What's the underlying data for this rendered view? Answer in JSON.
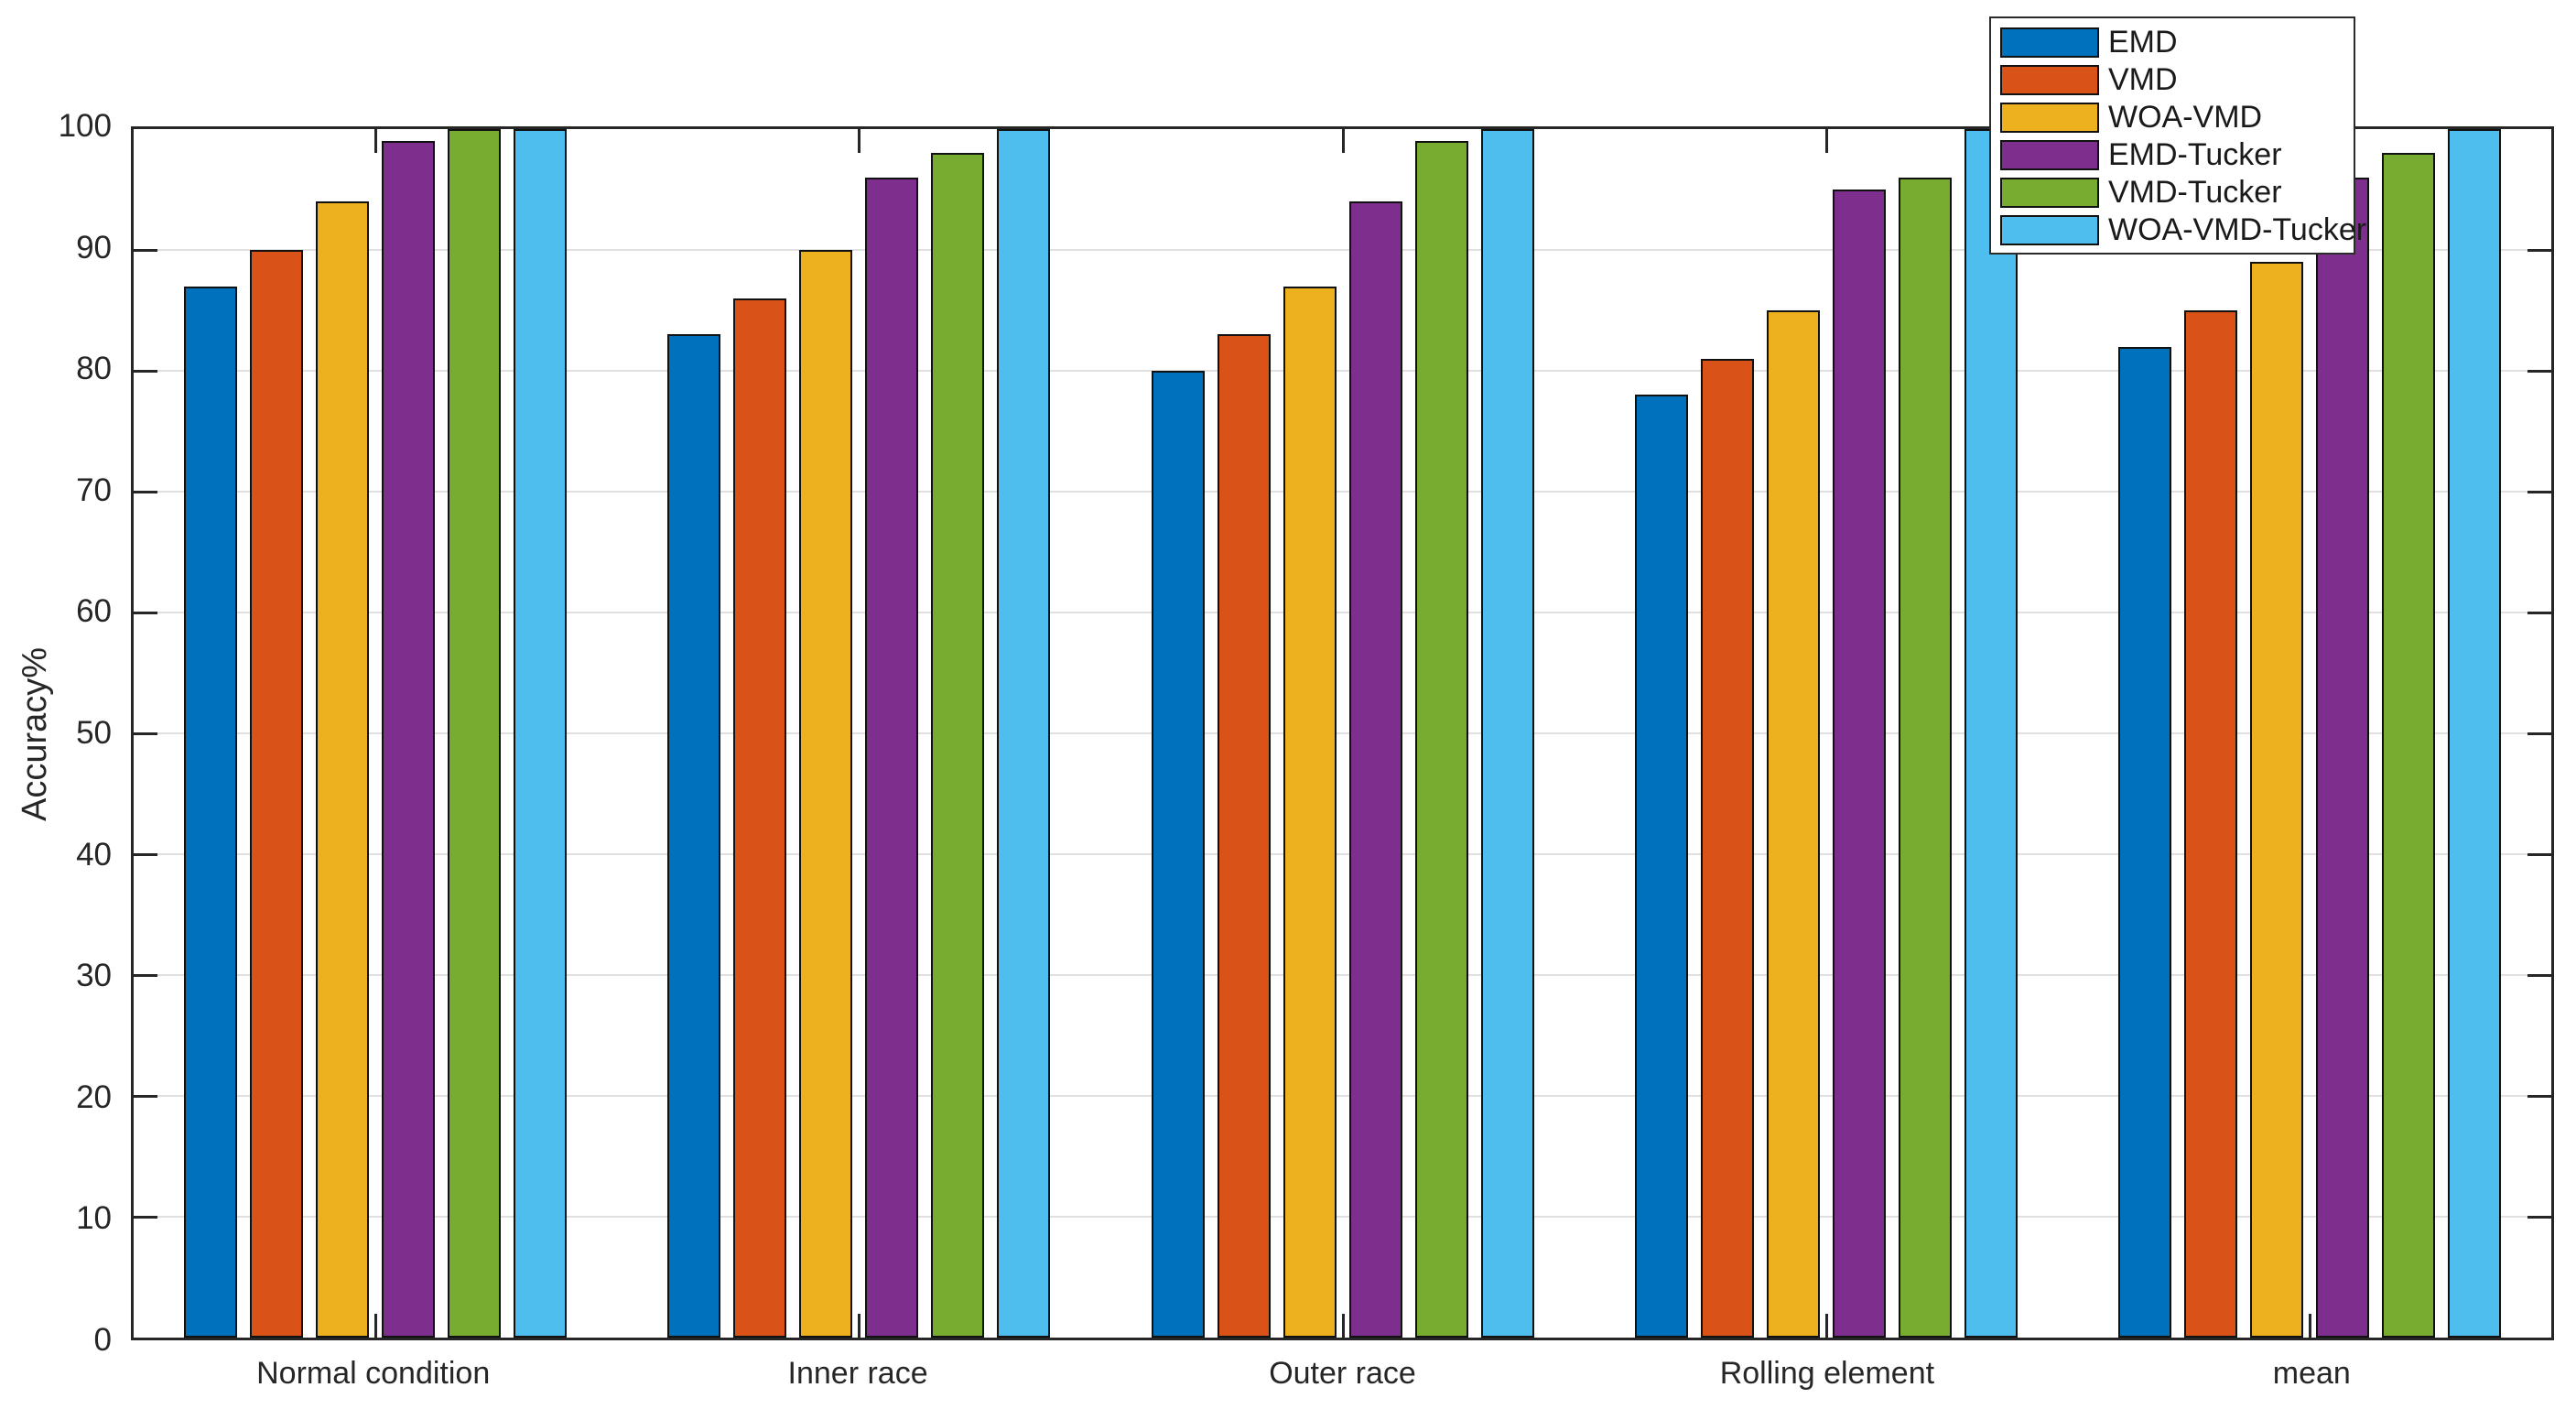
{
  "axes": {
    "ylabel": "Accuracy%",
    "axis_color": "#262626",
    "grid_color": "#e0e0e0",
    "background": "#ffffff"
  },
  "chart_data": {
    "type": "bar",
    "title": "",
    "xlabel": "",
    "ylabel": "Accuracy%",
    "ylim": [
      0,
      100
    ],
    "yticks": [
      0,
      10,
      20,
      30,
      40,
      50,
      60,
      70,
      80,
      90,
      100
    ],
    "grid": "horizontal",
    "legend_position": "top-right",
    "categories": [
      "Normal condition",
      "Inner race",
      "Outer race",
      "Rolling element",
      "mean"
    ],
    "series": [
      {
        "name": "EMD",
        "color": "#0072BD",
        "values": [
          87,
          83,
          80,
          78,
          82
        ]
      },
      {
        "name": "VMD",
        "color": "#D95319",
        "values": [
          90,
          86,
          83,
          81,
          85
        ]
      },
      {
        "name": "WOA-VMD",
        "color": "#EDB120",
        "values": [
          94,
          90,
          87,
          85,
          89
        ]
      },
      {
        "name": "EMD-Tucker",
        "color": "#7E2F8E",
        "values": [
          99,
          96,
          94,
          95,
          96
        ]
      },
      {
        "name": "VMD-Tucker",
        "color": "#77AC30",
        "values": [
          100,
          98,
          99,
          96,
          98
        ]
      },
      {
        "name": "WOA-VMD-Tucker",
        "color": "#4DBEEE",
        "values": [
          100,
          100,
          100,
          100,
          100
        ]
      }
    ]
  }
}
